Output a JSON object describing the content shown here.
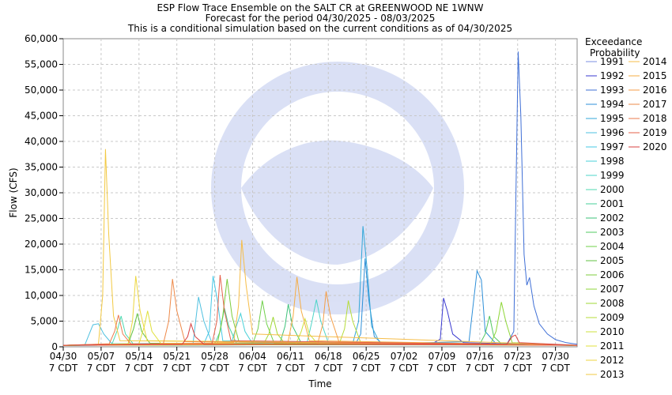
{
  "chart_data": {
    "type": "line",
    "title_lines": [
      "ESP Flow Trace Ensemble on the SALT CR at GREENWOOD NE 1WNW",
      "Forecast for the period 04/30/2025 - 08/03/2025",
      "This is a conditional simulation based on the current conditions as of 04/30/2025"
    ],
    "xlabel": "Time",
    "ylabel": "Flow (CFS)",
    "ylim": [
      0,
      60000
    ],
    "xlim_days": [
      0,
      95
    ],
    "yticks": [
      {
        "v": 0,
        "label": "0"
      },
      {
        "v": 5000,
        "label": "5,000"
      },
      {
        "v": 10000,
        "label": "10,000"
      },
      {
        "v": 15000,
        "label": "15,000"
      },
      {
        "v": 20000,
        "label": "20,000"
      },
      {
        "v": 25000,
        "label": "25,000"
      },
      {
        "v": 30000,
        "label": "30,000"
      },
      {
        "v": 35000,
        "label": "35,000"
      },
      {
        "v": 40000,
        "label": "40,000"
      },
      {
        "v": 45000,
        "label": "45,000"
      },
      {
        "v": 50000,
        "label": "50,000"
      },
      {
        "v": 55000,
        "label": "55,000"
      },
      {
        "v": 60000,
        "label": "60,000"
      }
    ],
    "xticks": [
      {
        "d": 0,
        "label": "04/30",
        "sub": "7 CDT"
      },
      {
        "d": 7,
        "label": "05/07",
        "sub": "7 CDT"
      },
      {
        "d": 14,
        "label": "05/14",
        "sub": "7 CDT"
      },
      {
        "d": 21,
        "label": "05/21",
        "sub": "7 CDT"
      },
      {
        "d": 28,
        "label": "05/28",
        "sub": "7 CDT"
      },
      {
        "d": 35,
        "label": "06/04",
        "sub": "7 CDT"
      },
      {
        "d": 42,
        "label": "06/11",
        "sub": "7 CDT"
      },
      {
        "d": 49,
        "label": "06/18",
        "sub": "7 CDT"
      },
      {
        "d": 56,
        "label": "06/25",
        "sub": "7 CDT"
      },
      {
        "d": 63,
        "label": "07/02",
        "sub": "7 CDT"
      },
      {
        "d": 70,
        "label": "07/09",
        "sub": "7 CDT"
      },
      {
        "d": 77,
        "label": "07/16",
        "sub": "7 CDT"
      },
      {
        "d": 84,
        "label": "07/23",
        "sub": "7 CDT"
      },
      {
        "d": 91,
        "label": "07/30",
        "sub": "7 CDT"
      }
    ],
    "legend_title": [
      "Exceedance",
      "Probability"
    ],
    "legend_placement": "right",
    "grid": true,
    "series": [
      {
        "name": "1991",
        "color": "#7b8fe0",
        "points": [
          [
            0,
            300
          ],
          [
            20,
            400
          ],
          [
            40,
            600
          ],
          [
            60,
            800
          ],
          [
            80,
            500
          ],
          [
            95,
            300
          ]
        ]
      },
      {
        "name": "1992",
        "color": "#3a3ad0",
        "points": [
          [
            0,
            300
          ],
          [
            68,
            500
          ],
          [
            69.7,
            1500
          ],
          [
            70.3,
            9500
          ],
          [
            71,
            7000
          ],
          [
            72,
            2500
          ],
          [
            74,
            800
          ],
          [
            95,
            300
          ]
        ]
      },
      {
        "name": "1993",
        "color": "#3f6fd6",
        "points": [
          [
            0,
            300
          ],
          [
            82,
            500
          ],
          [
            83.3,
            3000
          ],
          [
            84.1,
            57500
          ],
          [
            84.6,
            45000
          ],
          [
            85.2,
            18000
          ],
          [
            85.7,
            12000
          ],
          [
            86.2,
            13500
          ],
          [
            87,
            8000
          ],
          [
            88,
            4500
          ],
          [
            89.5,
            2500
          ],
          [
            91,
            1400
          ],
          [
            93,
            800
          ],
          [
            95,
            500
          ]
        ]
      },
      {
        "name": "1994",
        "color": "#2e8fd8",
        "points": [
          [
            0,
            300
          ],
          [
            54,
            500
          ],
          [
            55,
            2500
          ],
          [
            55.8,
            17200
          ],
          [
            56.5,
            9000
          ],
          [
            57.5,
            2000
          ],
          [
            59,
            600
          ],
          [
            75,
            1000
          ],
          [
            76.5,
            14800
          ],
          [
            77.3,
            13000
          ],
          [
            78,
            3000
          ],
          [
            80,
            600
          ],
          [
            95,
            300
          ]
        ]
      },
      {
        "name": "1995",
        "color": "#33a7d8",
        "points": [
          [
            0,
            300
          ],
          [
            53.5,
            600
          ],
          [
            54.6,
            5000
          ],
          [
            55.4,
            23500
          ],
          [
            56.2,
            15000
          ],
          [
            57,
            4000
          ],
          [
            58.5,
            800
          ],
          [
            95,
            300
          ]
        ]
      },
      {
        "name": "1996",
        "color": "#4ec0e0",
        "points": [
          [
            0,
            300
          ],
          [
            4,
            400
          ],
          [
            5.5,
            4300
          ],
          [
            6.5,
            4500
          ],
          [
            7.5,
            2500
          ],
          [
            9,
            600
          ],
          [
            24,
            700
          ],
          [
            25,
            9700
          ],
          [
            26,
            5000
          ],
          [
            27.5,
            700
          ],
          [
            95,
            300
          ]
        ]
      },
      {
        "name": "1997",
        "color": "#46c8e6",
        "points": [
          [
            0,
            300
          ],
          [
            26,
            600
          ],
          [
            27,
            3000
          ],
          [
            27.7,
            13800
          ],
          [
            28.5,
            9000
          ],
          [
            29.5,
            1200
          ],
          [
            95,
            300
          ]
        ]
      },
      {
        "name": "1998",
        "color": "#48d0d8",
        "points": [
          [
            0,
            300
          ],
          [
            31,
            500
          ],
          [
            32,
            4000
          ],
          [
            32.8,
            6500
          ],
          [
            33.6,
            3000
          ],
          [
            35,
            600
          ],
          [
            95,
            300
          ]
        ]
      },
      {
        "name": "1999",
        "color": "#4dd5c8",
        "points": [
          [
            0,
            300
          ],
          [
            45,
            500
          ],
          [
            46,
            5000
          ],
          [
            46.8,
            9200
          ],
          [
            47.6,
            5000
          ],
          [
            49,
            800
          ],
          [
            95,
            300
          ]
        ]
      },
      {
        "name": "2000",
        "color": "#4fd8b0",
        "points": [
          [
            0,
            300
          ],
          [
            9,
            500
          ],
          [
            10,
            3200
          ],
          [
            10.7,
            6000
          ],
          [
            11.5,
            2500
          ],
          [
            13,
            500
          ],
          [
            95,
            300
          ]
        ]
      },
      {
        "name": "2001",
        "color": "#45cf98",
        "points": [
          [
            0,
            300
          ],
          [
            28,
            500
          ],
          [
            29,
            3000
          ],
          [
            29.8,
            7500
          ],
          [
            30.6,
            4000
          ],
          [
            32,
            700
          ],
          [
            95,
            300
          ]
        ]
      },
      {
        "name": "2002",
        "color": "#3ec27a",
        "points": [
          [
            0,
            300
          ],
          [
            40,
            500
          ],
          [
            41,
            4000
          ],
          [
            41.6,
            8300
          ],
          [
            42.4,
            4000
          ],
          [
            44,
            700
          ],
          [
            95,
            300
          ]
        ]
      },
      {
        "name": "2003",
        "color": "#52c860",
        "points": [
          [
            0,
            300
          ],
          [
            77,
            500
          ],
          [
            78,
            2500
          ],
          [
            78.8,
            6000
          ],
          [
            79.6,
            2000
          ],
          [
            81,
            600
          ],
          [
            95,
            300
          ]
        ]
      },
      {
        "name": "2004",
        "color": "#6fd04a",
        "points": [
          [
            0,
            300
          ],
          [
            35,
            500
          ],
          [
            36,
            3500
          ],
          [
            36.8,
            9000
          ],
          [
            37.6,
            4500
          ],
          [
            39,
            700
          ],
          [
            95,
            300
          ]
        ]
      },
      {
        "name": "2005",
        "color": "#60c040",
        "points": [
          [
            0,
            300
          ],
          [
            12,
            600
          ],
          [
            13,
            3500
          ],
          [
            13.7,
            6500
          ],
          [
            14.5,
            3000
          ],
          [
            16,
            700
          ],
          [
            95,
            300
          ]
        ]
      },
      {
        "name": "2006",
        "color": "#7ccc3c",
        "points": [
          [
            0,
            300
          ],
          [
            28.5,
            600
          ],
          [
            29.5,
            6000
          ],
          [
            30.3,
            13200
          ],
          [
            31.2,
            6000
          ],
          [
            32.5,
            900
          ],
          [
            95,
            300
          ]
        ]
      },
      {
        "name": "2007",
        "color": "#8ed638",
        "points": [
          [
            0,
            300
          ],
          [
            79,
            500
          ],
          [
            80,
            3000
          ],
          [
            81,
            8700
          ],
          [
            81.8,
            5000
          ],
          [
            83,
            800
          ],
          [
            95,
            300
          ]
        ]
      },
      {
        "name": "2008",
        "color": "#9fd835",
        "points": [
          [
            0,
            300
          ],
          [
            37,
            500
          ],
          [
            38,
            2500
          ],
          [
            38.8,
            5800
          ],
          [
            39.6,
            2500
          ],
          [
            41,
            600
          ],
          [
            95,
            300
          ]
        ]
      },
      {
        "name": "2009",
        "color": "#b5dc3a",
        "points": [
          [
            0,
            300
          ],
          [
            51,
            500
          ],
          [
            52,
            3500
          ],
          [
            52.7,
            9000
          ],
          [
            53.5,
            5000
          ],
          [
            55,
            800
          ],
          [
            95,
            300
          ]
        ]
      },
      {
        "name": "2010",
        "color": "#cde03c",
        "points": [
          [
            0,
            300
          ],
          [
            43,
            500
          ],
          [
            44,
            3000
          ],
          [
            44.7,
            5500
          ],
          [
            45.5,
            2500
          ],
          [
            47,
            600
          ],
          [
            95,
            300
          ]
        ]
      },
      {
        "name": "2011",
        "color": "#e0e03c",
        "points": [
          [
            0,
            300
          ],
          [
            14,
            600
          ],
          [
            15,
            4000
          ],
          [
            15.6,
            7000
          ],
          [
            16.4,
            3000
          ],
          [
            18,
            700
          ],
          [
            95,
            300
          ]
        ]
      },
      {
        "name": "2012",
        "color": "#ecd640",
        "points": [
          [
            0,
            300
          ],
          [
            12,
            600
          ],
          [
            12.8,
            5000
          ],
          [
            13.4,
            13800
          ],
          [
            14.2,
            7000
          ],
          [
            15.5,
            1200
          ],
          [
            95,
            300
          ]
        ]
      },
      {
        "name": "2013",
        "color": "#f2c943",
        "points": [
          [
            0,
            300
          ],
          [
            6.5,
            500
          ],
          [
            7.3,
            10000
          ],
          [
            7.8,
            38500
          ],
          [
            8.4,
            22000
          ],
          [
            9.3,
            6000
          ],
          [
            10.5,
            1200
          ],
          [
            95,
            300
          ]
        ]
      },
      {
        "name": "2014",
        "color": "#f6bd48",
        "points": [
          [
            0,
            300
          ],
          [
            31.5,
            800
          ],
          [
            32.4,
            8000
          ],
          [
            33,
            20800
          ],
          [
            33.8,
            12000
          ],
          [
            35,
            2500
          ],
          [
            95,
            300
          ]
        ]
      },
      {
        "name": "2015",
        "color": "#f5ad44",
        "points": [
          [
            0,
            300
          ],
          [
            41.5,
            600
          ],
          [
            42.5,
            6000
          ],
          [
            43.2,
            13600
          ],
          [
            44,
            7000
          ],
          [
            45.5,
            1200
          ],
          [
            95,
            300
          ]
        ]
      },
      {
        "name": "2016",
        "color": "#f49e48",
        "points": [
          [
            0,
            300
          ],
          [
            47,
            500
          ],
          [
            48,
            4500
          ],
          [
            48.6,
            10800
          ],
          [
            49.4,
            6000
          ],
          [
            51,
            900
          ],
          [
            95,
            300
          ]
        ]
      },
      {
        "name": "2017",
        "color": "#ee8a4a",
        "points": [
          [
            0,
            300
          ],
          [
            18.5,
            600
          ],
          [
            19.5,
            5000
          ],
          [
            20.2,
            13200
          ],
          [
            21,
            7000
          ],
          [
            22.5,
            1000
          ],
          [
            95,
            300
          ]
        ]
      },
      {
        "name": "2018",
        "color": "#eb7a4e",
        "points": [
          [
            0,
            300
          ],
          [
            8.5,
            600
          ],
          [
            9.5,
            3000
          ],
          [
            10.2,
            6200
          ],
          [
            11,
            2500
          ],
          [
            12.5,
            600
          ],
          [
            95,
            300
          ]
        ]
      },
      {
        "name": "2019",
        "color": "#e5604a",
        "points": [
          [
            0,
            300
          ],
          [
            27.5,
            600
          ],
          [
            28.4,
            5000
          ],
          [
            29,
            14000
          ],
          [
            29.8,
            7000
          ],
          [
            31,
            1200
          ],
          [
            95,
            300
          ]
        ]
      },
      {
        "name": "2020",
        "color": "#d84040",
        "points": [
          [
            0,
            300
          ],
          [
            22,
            500
          ],
          [
            23,
            2000
          ],
          [
            23.6,
            4500
          ],
          [
            24.4,
            2000
          ],
          [
            26,
            500
          ],
          [
            82,
            500
          ],
          [
            83,
            2000
          ],
          [
            83.6,
            2300
          ],
          [
            84.3,
            800
          ],
          [
            95,
            300
          ]
        ]
      }
    ]
  }
}
